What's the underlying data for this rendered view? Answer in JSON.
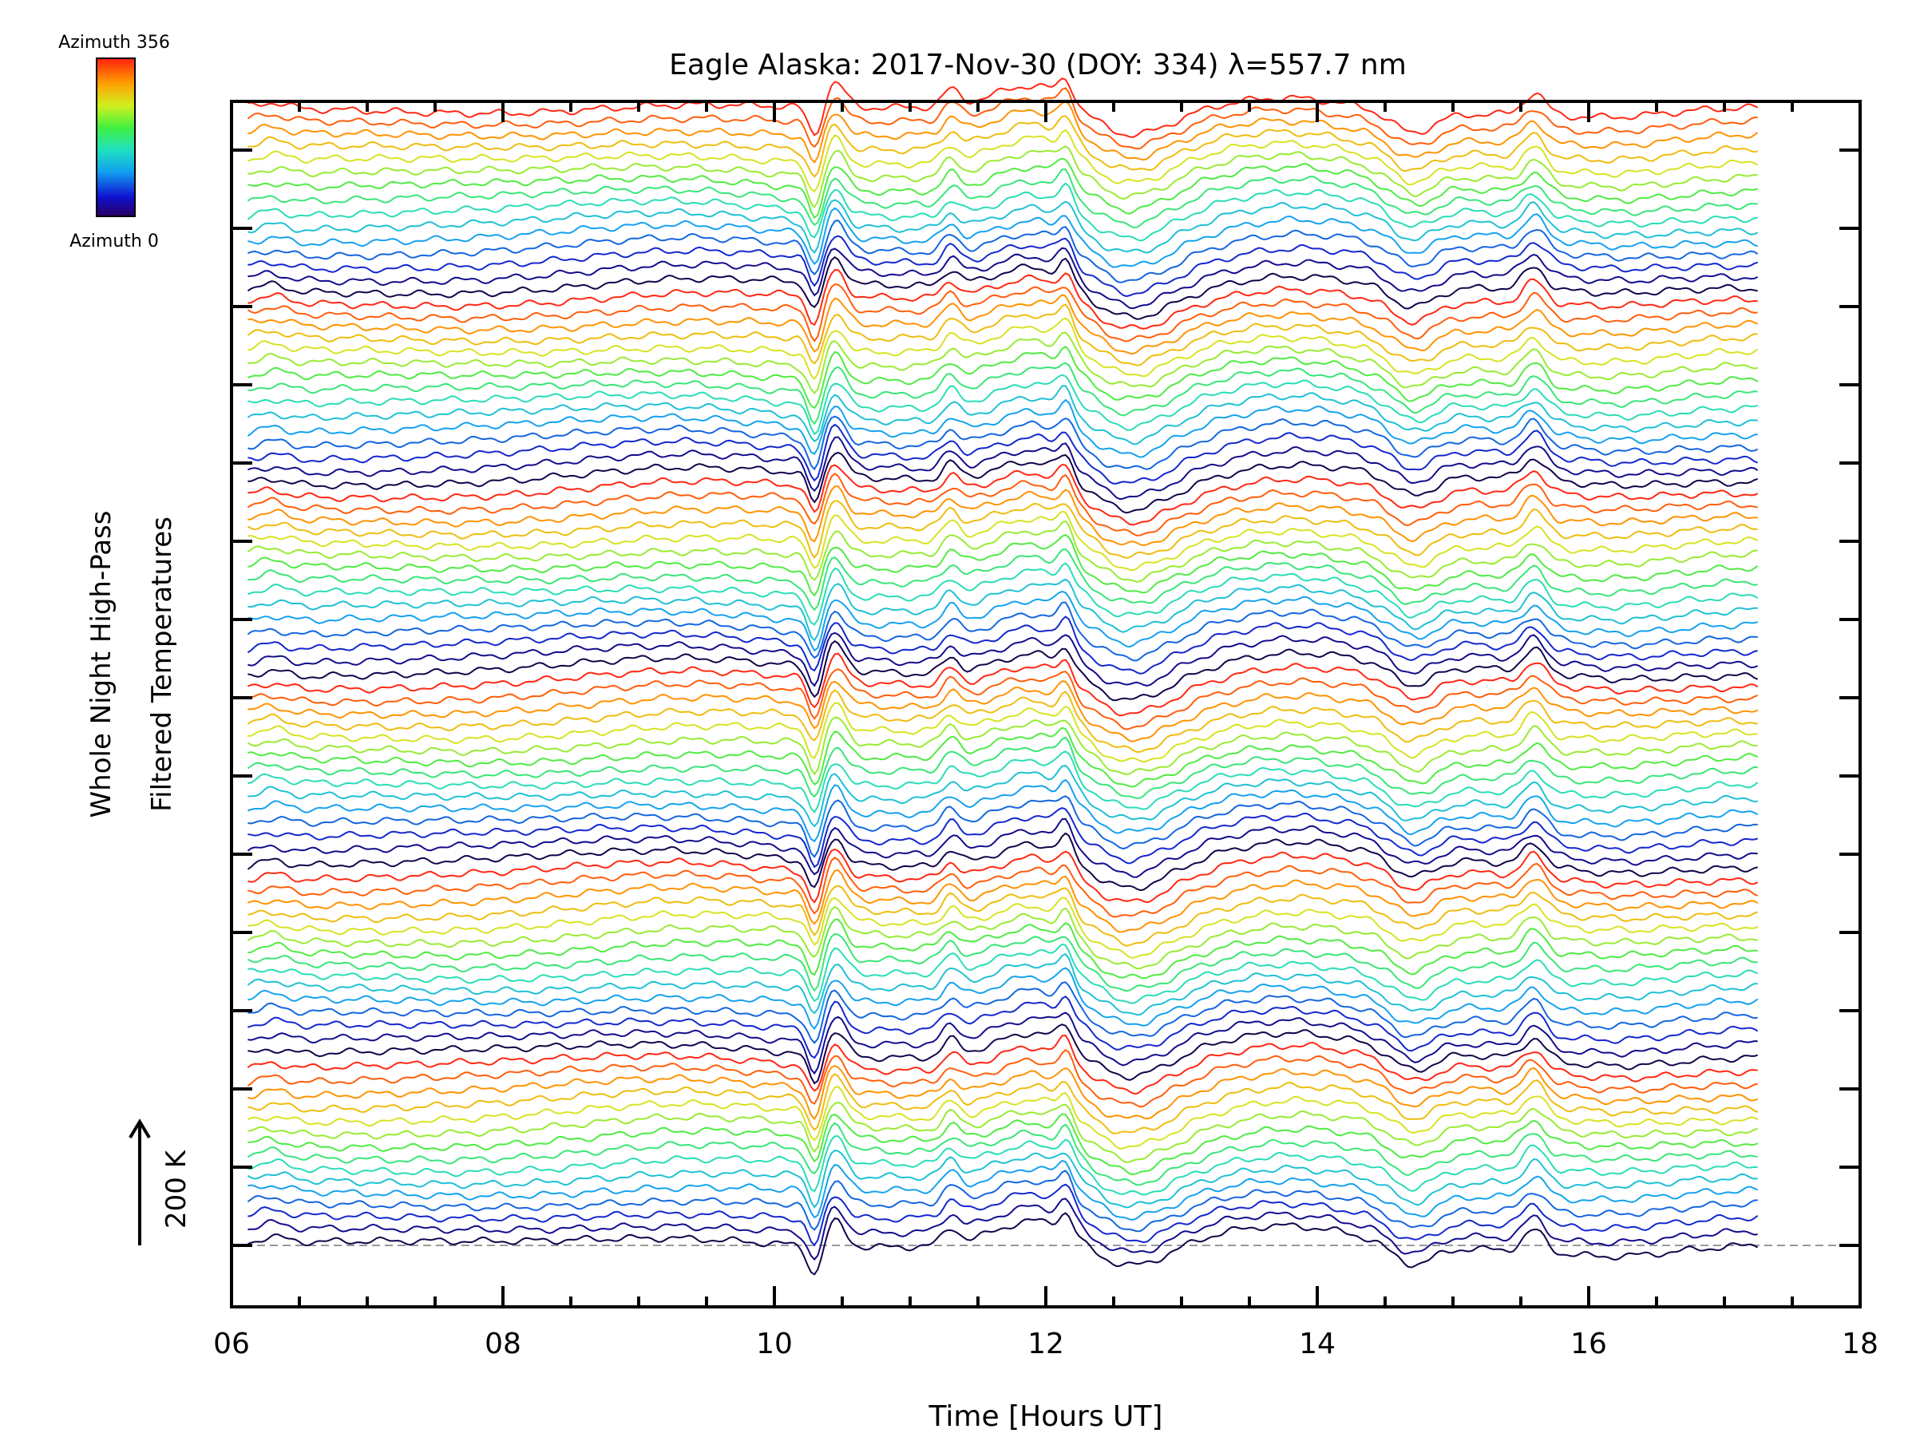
{
  "chart_data": {
    "type": "line",
    "title": "Eagle Alaska: 2017-Nov-30 (DOY: 334) λ=557.7 nm",
    "xlabel": "Time [Hours UT]",
    "ylabel_lines": [
      "Whole Night High-Pass",
      "Filtered Temperatures"
    ],
    "x_range": [
      6,
      18
    ],
    "x_ticks": [
      "06",
      "08",
      "10",
      "12",
      "14",
      "16",
      "18"
    ],
    "y_ticks_count": 15,
    "series_count": 90,
    "series_offset_note": "200 K",
    "time_start_hours": 6.12,
    "time_end_hours": 17.25,
    "color_bar": {
      "top_label": "Azimuth 356",
      "bottom_label": "Azimuth 0",
      "range": [
        0,
        356
      ]
    },
    "baseline_style": "dashed gray",
    "profile_features": [
      {
        "time": 10.3,
        "kind": "sharp dip"
      },
      {
        "time": 10.45,
        "kind": "sharp peak"
      },
      {
        "time": 11.3,
        "kind": "peak"
      },
      {
        "time": 11.95,
        "kind": "broad peak"
      },
      {
        "time": 12.15,
        "kind": "sharp peak"
      },
      {
        "time": 12.6,
        "kind": "broad trough"
      },
      {
        "time": 13.8,
        "kind": "broad peak"
      },
      {
        "time": 14.7,
        "kind": "trough"
      },
      {
        "time": 15.6,
        "kind": "peak"
      }
    ]
  }
}
